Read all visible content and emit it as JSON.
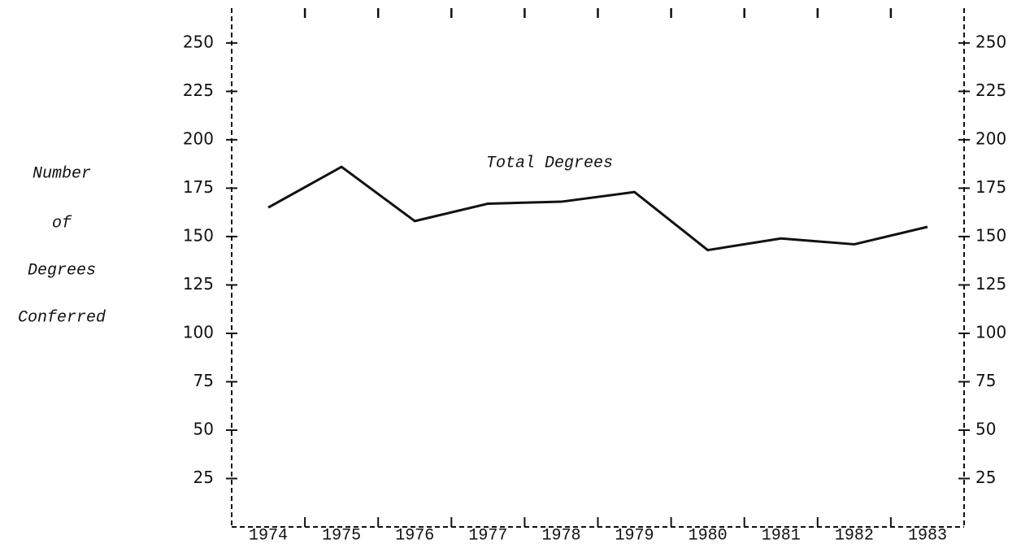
{
  "chart_data": {
    "type": "line",
    "ylabel": [
      "Number",
      "of",
      "Degrees",
      "Conferred"
    ],
    "categories": [
      "1974",
      "1975",
      "1976",
      "1977",
      "1978",
      "1979",
      "1980",
      "1981",
      "1982",
      "1983"
    ],
    "series": [
      {
        "name": "Total Degrees",
        "color": "#111111",
        "values": [
          165,
          186,
          158,
          167,
          168,
          173,
          143,
          149,
          146,
          155
        ]
      }
    ],
    "ylim": [
      0,
      268
    ],
    "yticks": [
      25,
      50,
      75,
      100,
      125,
      150,
      175,
      200,
      225,
      250
    ],
    "y2lim": [
      0,
      268
    ],
    "y2ticks": [
      25,
      50,
      75,
      100,
      125,
      150,
      175,
      200,
      225,
      250
    ],
    "grid": false
  }
}
